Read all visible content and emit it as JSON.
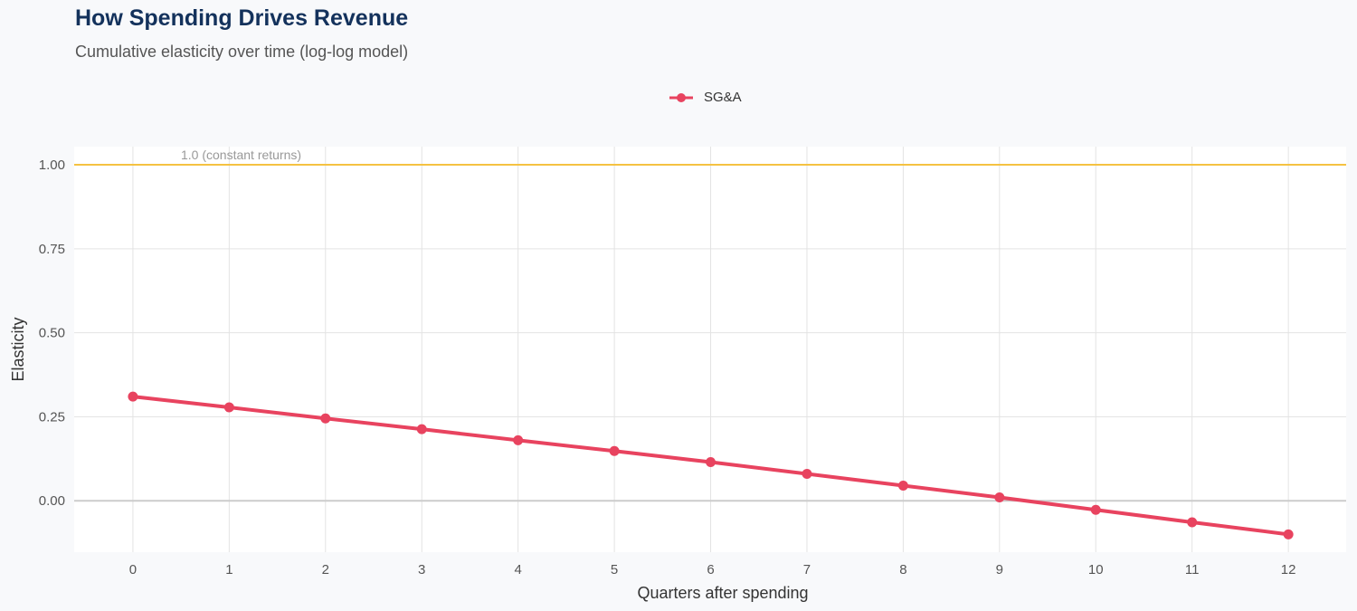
{
  "chart_data": {
    "type": "line",
    "title": "How Spending Drives Revenue",
    "subtitle": "Cumulative elasticity over time (log-log model)",
    "xlabel": "Quarters after spending",
    "ylabel": "Elasticity",
    "x": [
      0,
      1,
      2,
      3,
      4,
      5,
      6,
      7,
      8,
      9,
      10,
      11,
      12
    ],
    "series": [
      {
        "name": "SG&A",
        "color": "#e8435f",
        "values": [
          0.31,
          0.278,
          0.245,
          0.213,
          0.18,
          0.148,
          0.115,
          0.08,
          0.045,
          0.01,
          -0.027,
          -0.064,
          -0.1
        ]
      }
    ],
    "xlim": [
      -0.61,
      12.6
    ],
    "ylim": [
      -0.153,
      1.054
    ],
    "yticks": [
      0,
      0.25,
      0.5,
      0.75,
      1.0
    ],
    "ytick_labels": [
      "0.00",
      "0.25",
      "0.50",
      "0.75",
      "1.00"
    ],
    "xticks": [
      0,
      1,
      2,
      3,
      4,
      5,
      6,
      7,
      8,
      9,
      10,
      11,
      12
    ],
    "xtick_labels": [
      "0",
      "1",
      "2",
      "3",
      "4",
      "5",
      "6",
      "7",
      "8",
      "9",
      "10",
      "11",
      "12"
    ],
    "reference_line": {
      "y": 1.0,
      "label": "1.0 (constant returns)",
      "color": "#f5c242"
    },
    "zero_line_color": "#cccccc",
    "grid": true,
    "legend_position": "top-center"
  }
}
